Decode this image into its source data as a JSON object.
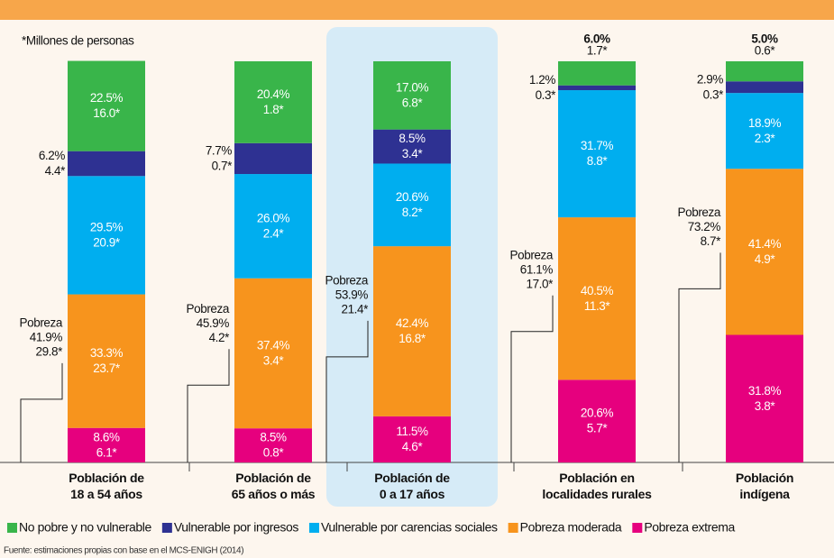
{
  "chart_data": {
    "type": "bar",
    "stacked": true,
    "subtitle": "*Millones de personas",
    "source": "Fuente: estimaciones propias con base en el MCS-ENIGH (2014)",
    "categories": [
      "Población de\n18 a 54 años",
      "Población de\n65 años o más",
      "Población de\n0 a 17 años",
      "Población en\nlocalidades rurales",
      "Población\nindígena"
    ],
    "highlight_index": 2,
    "ylim": [
      0,
      100
    ],
    "series": [
      {
        "name": "Pobreza extrema",
        "color": "#e6007e",
        "values": [
          8.6,
          8.5,
          11.5,
          20.6,
          31.8
        ],
        "value_labels": [
          "8.6%",
          "8.5%",
          "11.5%",
          "20.6%",
          "31.8%"
        ],
        "millions_labels": [
          "6.1*",
          "0.8*",
          "4.6*",
          "5.7*",
          "3.8*"
        ]
      },
      {
        "name": "Pobreza moderada",
        "color": "#f7941d",
        "values": [
          33.3,
          37.4,
          42.4,
          40.5,
          41.4
        ],
        "value_labels": [
          "33.3%",
          "37.4%",
          "42.4%",
          "40.5%",
          "41.4%"
        ],
        "millions_labels": [
          "23.7*",
          "3.4*",
          "16.8*",
          "11.3*",
          "4.9*"
        ]
      },
      {
        "name": "Vulnerable por carencias sociales",
        "color": "#00aeef",
        "values": [
          29.5,
          26.0,
          20.6,
          31.7,
          18.9
        ],
        "value_labels": [
          "29.5%",
          "26.0%",
          "20.6%",
          "31.7%",
          "18.9%"
        ],
        "millions_labels": [
          "20.9*",
          "2.4*",
          "8.2*",
          "8.8*",
          "2.3*"
        ]
      },
      {
        "name": "Vulnerable por ingresos",
        "color": "#2e3192",
        "values": [
          6.2,
          7.7,
          8.5,
          1.2,
          2.9
        ],
        "value_labels": [
          "6.2%",
          "7.7%",
          "8.5%",
          "1.2%",
          "2.9%"
        ],
        "millions_labels": [
          "4.4*",
          "0.7*",
          "3.4*",
          "0.3*",
          "0.3*"
        ]
      },
      {
        "name": "No pobre y no vulnerable",
        "color": "#39b54a",
        "values": [
          22.5,
          20.4,
          17.0,
          6.0,
          5.0
        ],
        "value_labels": [
          "22.5%",
          "20.4%",
          "17.0%",
          "6.0%",
          "5.0%"
        ],
        "millions_labels": [
          "16.0*",
          "1.8*",
          "6.8*",
          "1.7*",
          "0.6*"
        ]
      }
    ],
    "poverty_labels": [
      {
        "label": "Pobreza",
        "percent": "41.9%",
        "millions": "29.8*"
      },
      {
        "label": "Pobreza",
        "percent": "45.9%",
        "millions": "4.2*"
      },
      {
        "label": "Pobreza",
        "percent": "53.9%",
        "millions": "21.4*"
      },
      {
        "label": "Pobreza",
        "percent": "61.1%",
        "millions": "17.0*"
      },
      {
        "label": "Pobreza",
        "percent": "73.2%",
        "millions": "8.7*"
      }
    ]
  }
}
